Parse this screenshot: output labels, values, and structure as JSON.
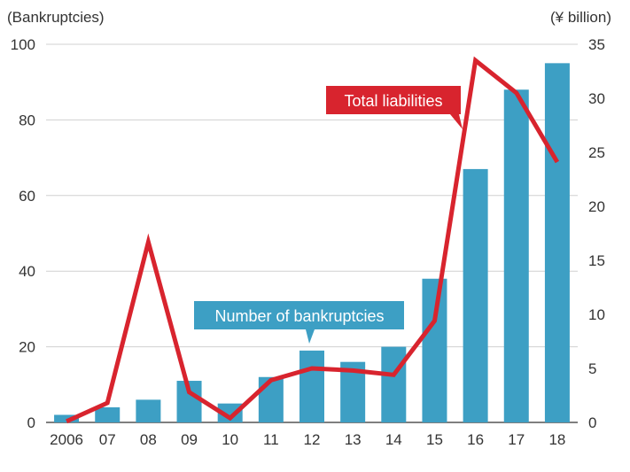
{
  "chart_data": {
    "type": "bar",
    "title": "",
    "categories": [
      "2006",
      "07",
      "08",
      "09",
      "10",
      "11",
      "12",
      "13",
      "14",
      "15",
      "16",
      "17",
      "18"
    ],
    "left_axis": {
      "label": "(Bankruptcies)",
      "ylim": [
        0,
        100
      ],
      "ticks": [
        0,
        20,
        40,
        60,
        80,
        100
      ]
    },
    "right_axis": {
      "label": "(¥ billion)",
      "ylim": [
        0,
        35
      ],
      "ticks": [
        0,
        5,
        10,
        15,
        20,
        25,
        30,
        35
      ]
    },
    "grid": "horizontal",
    "series": [
      {
        "name": "Number of bankruptcies",
        "type": "bar",
        "axis": "left",
        "color": "#3d9fc4",
        "values": [
          2,
          4,
          6,
          11,
          5,
          12,
          19,
          16,
          20,
          38,
          67,
          88,
          95
        ]
      },
      {
        "name": "Total liabilities",
        "type": "line",
        "axis": "right",
        "color": "#d8242e",
        "values": [
          0.1,
          1.8,
          16.7,
          2.8,
          0.4,
          3.9,
          5.0,
          4.8,
          4.4,
          9.4,
          33.5,
          30.5,
          24.1
        ]
      }
    ]
  }
}
